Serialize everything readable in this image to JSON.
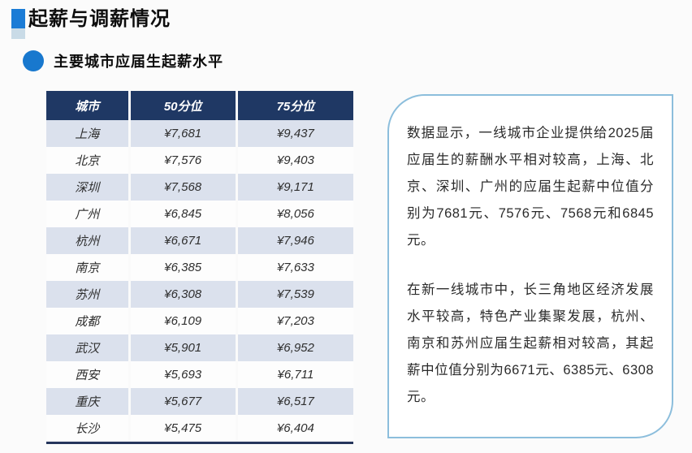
{
  "page": {
    "title": "起薪与调薪情况",
    "section_title": "主要城市应届生起薪水平"
  },
  "table": {
    "columns": [
      "城市",
      "50分位",
      "75分位"
    ],
    "rows": [
      {
        "city": "上海",
        "p50": "¥7,681",
        "p75": "¥9,437"
      },
      {
        "city": "北京",
        "p50": "¥7,576",
        "p75": "¥9,403"
      },
      {
        "city": "深圳",
        "p50": "¥7,568",
        "p75": "¥9,171"
      },
      {
        "city": "广州",
        "p50": "¥6,845",
        "p75": "¥8,056"
      },
      {
        "city": "杭州",
        "p50": "¥6,671",
        "p75": "¥7,946"
      },
      {
        "city": "南京",
        "p50": "¥6,385",
        "p75": "¥7,633"
      },
      {
        "city": "苏州",
        "p50": "¥6,308",
        "p75": "¥7,539"
      },
      {
        "city": "成都",
        "p50": "¥6,109",
        "p75": "¥7,203"
      },
      {
        "city": "武汉",
        "p50": "¥5,901",
        "p75": "¥6,952"
      },
      {
        "city": "西安",
        "p50": "¥5,693",
        "p75": "¥6,711"
      },
      {
        "city": "重庆",
        "p50": "¥5,677",
        "p75": "¥6,517"
      },
      {
        "city": "长沙",
        "p50": "¥5,475",
        "p75": "¥6,404"
      }
    ]
  },
  "callout": {
    "paragraphs": [
      "数据显示，一线城市企业提供给2025届应届生的薪酬水平相对较高，上海、北京、深圳、广州的应届生起薪中位值分别为7681元、7576元、7568元和6845元。",
      "在新一线城市中，长三角地区经济发展水平较高，特色产业集聚发展，杭州、南京和苏州应届生起薪相对较高，其起薪中位值分别为6671元、6385元、6308元。"
    ]
  },
  "colors": {
    "accent_blue": "#1878ce",
    "header_navy": "#1f3864",
    "row_shade": "#dbe1ed",
    "box_border": "#8cbedc"
  }
}
